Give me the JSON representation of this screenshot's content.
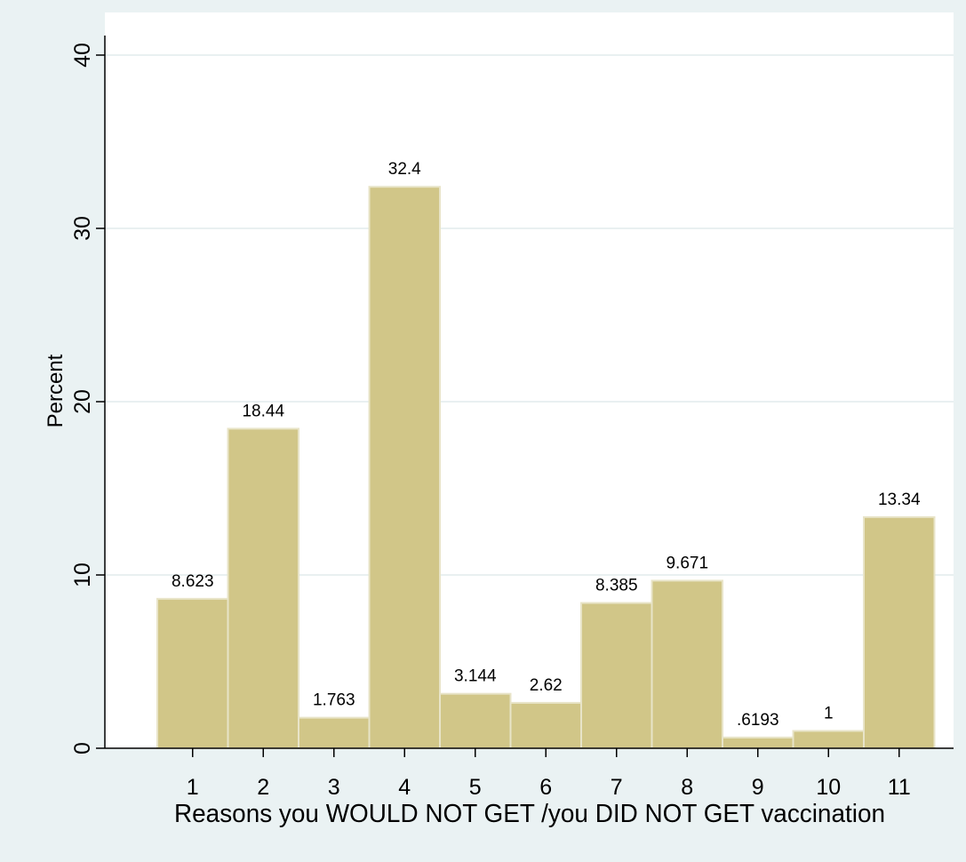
{
  "chart_data": {
    "type": "bar",
    "categories": [
      "1",
      "2",
      "3",
      "4",
      "5",
      "6",
      "7",
      "8",
      "9",
      "10",
      "11"
    ],
    "values": [
      8.623,
      18.44,
      1.763,
      32.4,
      3.144,
      2.62,
      8.385,
      9.671,
      0.6193,
      1,
      13.34
    ],
    "value_labels": [
      "8.623",
      "18.44",
      "1.763",
      "32.4",
      "3.144",
      "2.62",
      "8.385",
      "9.671",
      ".6193",
      "1",
      "13.34"
    ],
    "xlabel": "Reasons you WOULD NOT GET /you DID NOT GET vaccination",
    "ylabel": "Percent",
    "ylim": [
      0,
      40
    ],
    "yticks": [
      0,
      10,
      20,
      30,
      40
    ],
    "ytick_labels": [
      "0",
      "10",
      "20",
      "30",
      "40"
    ],
    "grid": true,
    "colors": {
      "bar_fill": "#d1c688",
      "bar_stroke": "#e8e4c8",
      "plot_bg": "#ffffff",
      "outer_bg": "#eaf2f3",
      "grid": "#e9f0f1"
    }
  }
}
